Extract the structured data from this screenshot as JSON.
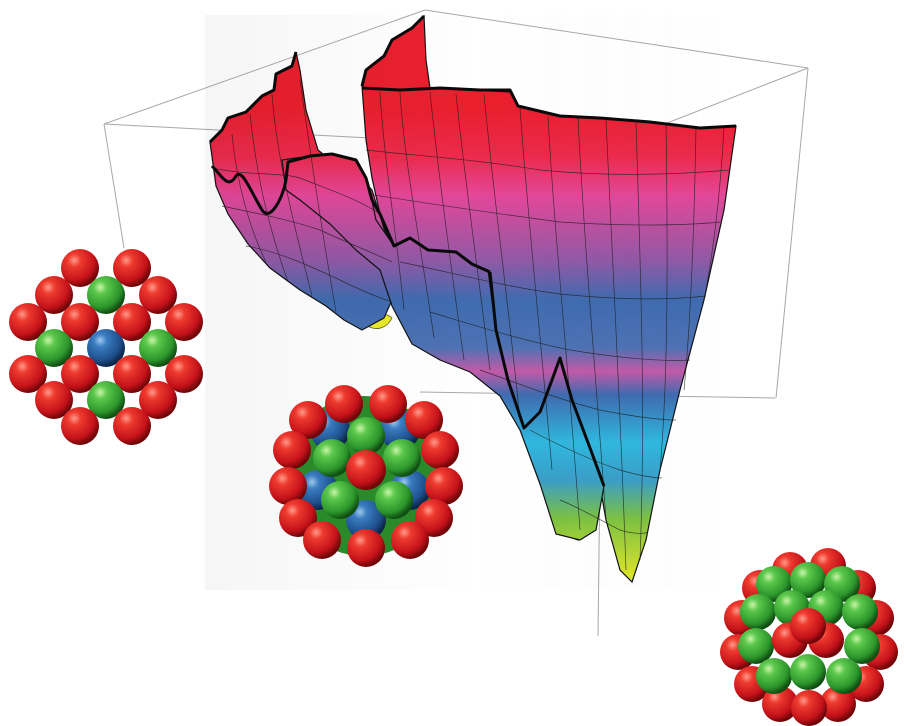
{
  "figure": {
    "subject": "energy-landscape-surface-with-atomic-clusters",
    "colors": {
      "background": "#ffffff",
      "box_edge": "#9a9a9a",
      "surface_top": "#e8253a",
      "surface_pink": "#e4479a",
      "surface_mid": "#3f6bb0",
      "surface_cyan": "#2fb9e0",
      "surface_green": "#7cc242",
      "surface_bottom": "#e6e92a",
      "atom_outer": "#d4161c",
      "atom_mid": "#3cae3a",
      "atom_core": "#1f5d9e"
    },
    "clusters": [
      {
        "name": "cluster-hexagonal-layer",
        "atoms": 19,
        "colors": [
          "red",
          "green",
          "blue"
        ]
      },
      {
        "name": "cluster-icosahedral-shell",
        "atoms": 55,
        "colors": [
          "red",
          "green",
          "blue"
        ]
      },
      {
        "name": "cluster-compact-ball",
        "atoms": 45,
        "colors": [
          "red",
          "green"
        ]
      }
    ]
  }
}
